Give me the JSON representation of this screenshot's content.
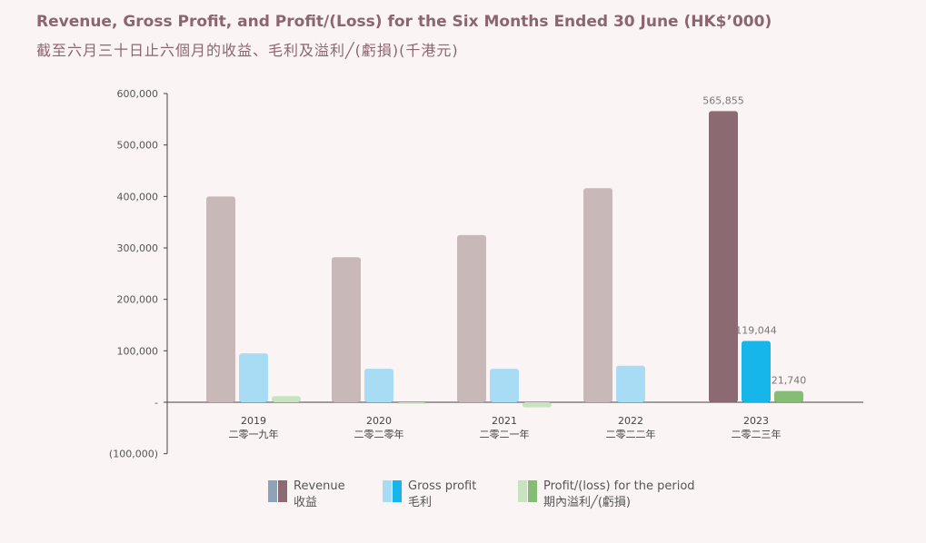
{
  "title": "Revenue, Gross Profit, and Profit/(Loss) for the Six Months Ended 30 June (HK$’000)",
  "subtitle": "截至六月三十日止六個月的收益、毛利及溢利╱(虧損)(千港元)",
  "chart_data": {
    "type": "bar",
    "categories": [
      "2019",
      "2020",
      "2021",
      "2022",
      "2023"
    ],
    "categories_zh": [
      "二零一九年",
      "二零二零年",
      "二零二一年",
      "二零二二年",
      "二零二三年"
    ],
    "series": [
      {
        "name": "Revenue",
        "name_zh": "收益",
        "values": [
          400000,
          282000,
          325000,
          416000,
          565855
        ],
        "color": "#c9b8b8",
        "highlight_color": "#8b6a72",
        "swatch_muted": "#8ea3b5"
      },
      {
        "name": "Gross profit",
        "name_zh": "毛利",
        "values": [
          95000,
          65000,
          65000,
          71000,
          119044
        ],
        "color": "#a8dcf5",
        "highlight_color": "#16b5ea",
        "swatch_muted": "#a8dcf5"
      },
      {
        "name": "Profit/(loss) for the period",
        "name_zh": "期內溢利╱(虧損)",
        "values": [
          12000,
          -3000,
          -10000,
          0,
          21740
        ],
        "color": "#c8e3c0",
        "highlight_color": "#86bd74",
        "swatch_muted": "#c8e3c0"
      }
    ],
    "highlight_category_index": 4,
    "data_labels": [
      "565,855",
      "119,044",
      "21,740"
    ],
    "ylim": [
      -100000,
      600000
    ],
    "yticks": [
      {
        "value": 600000,
        "label": "600,000"
      },
      {
        "value": 500000,
        "label": "500,000"
      },
      {
        "value": 400000,
        "label": "400,000"
      },
      {
        "value": 300000,
        "label": "300,000"
      },
      {
        "value": 200000,
        "label": "200,000"
      },
      {
        "value": 100000,
        "label": "100,000"
      },
      {
        "value": 0,
        "label": "-"
      },
      {
        "value": -100000,
        "label": "(100,000)"
      }
    ],
    "grid": false,
    "legend_position": "bottom"
  }
}
